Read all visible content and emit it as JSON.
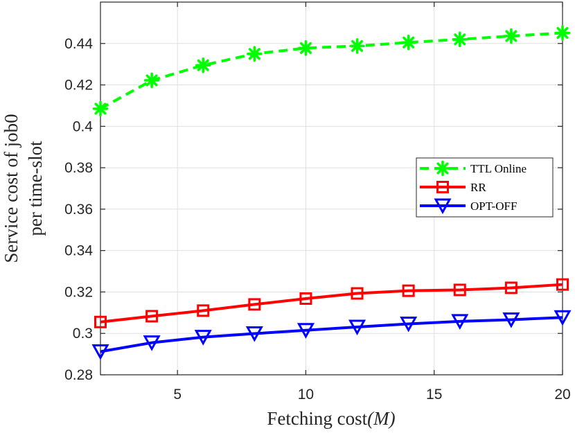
{
  "chart_data": {
    "type": "line",
    "title": "",
    "xlabel_text": "Fetching cost",
    "xlabel_math": "(M)",
    "ylabel_line1": "Service cost of job0",
    "ylabel_line2": "per time-slot",
    "xlim": [
      2,
      20
    ],
    "ylim": [
      0.28,
      0.46
    ],
    "x_ticks": [
      5,
      10,
      15,
      20
    ],
    "x_tick_labels": [
      "5",
      "10",
      "15",
      "20"
    ],
    "y_ticks": [
      0.28,
      0.3,
      0.32,
      0.34,
      0.36,
      0.38,
      0.4,
      0.42,
      0.44
    ],
    "y_tick_labels": [
      "0.28",
      "0.3",
      "0.32",
      "0.34",
      "0.36",
      "0.38",
      "0.4",
      "0.42",
      "0.44"
    ],
    "grid": true,
    "legend_placement": "center-right",
    "x": [
      2,
      4,
      6,
      8,
      10,
      12,
      14,
      16,
      18,
      20
    ],
    "series": [
      {
        "name": "TTL Online",
        "color": "#00ff00",
        "line_style": "dashed",
        "marker": "asterisk",
        "values": [
          0.4085,
          0.4222,
          0.4295,
          0.435,
          0.4378,
          0.4388,
          0.4405,
          0.442,
          0.4436,
          0.4451
        ]
      },
      {
        "name": "RR",
        "color": "#ff0000",
        "line_style": "solid",
        "marker": "square",
        "values": [
          0.3055,
          0.3083,
          0.311,
          0.314,
          0.3168,
          0.3193,
          0.3206,
          0.321,
          0.322,
          0.3236
        ]
      },
      {
        "name": "OPT-OFF",
        "color": "#0000ff",
        "line_style": "solid",
        "marker": "triangle-down",
        "values": [
          0.2912,
          0.2955,
          0.2982,
          0.2999,
          0.3015,
          0.3031,
          0.3046,
          0.3058,
          0.3066,
          0.3077
        ]
      }
    ]
  }
}
